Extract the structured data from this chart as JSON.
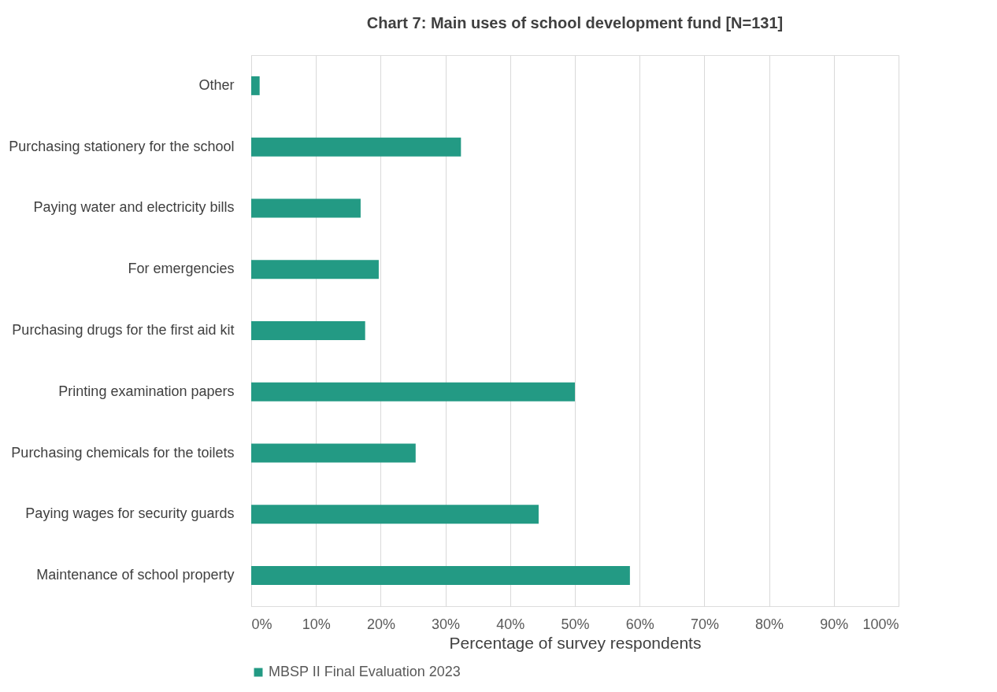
{
  "chart_data": {
    "type": "bar",
    "orientation": "horizontal",
    "title": "Chart 7: Main uses of school development fund [N=131]",
    "categories": [
      "Other",
      "Purchasing stationery for the school",
      "Paying water and electricity bills",
      "For emergencies",
      "Purchasing drugs for the first aid kit",
      "Printing examination papers",
      "Purchasing chemicals for the toilets",
      "Paying wages for security guards",
      "Maintenance of school property"
    ],
    "series": [
      {
        "name": "MBSP II Final Evaluation 2023",
        "color": "#239a84",
        "values": [
          1.3,
          32.4,
          16.9,
          19.7,
          17.6,
          50.0,
          25.4,
          44.4,
          58.5
        ]
      }
    ],
    "xlabel": "Percentage of survey respondents",
    "xlim": [
      0,
      100
    ],
    "xticks": [
      {
        "value": 0,
        "label": "0%"
      },
      {
        "value": 10,
        "label": "10%"
      },
      {
        "value": 20,
        "label": "20%"
      },
      {
        "value": 30,
        "label": "30%"
      },
      {
        "value": 40,
        "label": "40%"
      },
      {
        "value": 50,
        "label": "50%"
      },
      {
        "value": 60,
        "label": "60%"
      },
      {
        "value": 70,
        "label": "70%"
      },
      {
        "value": 80,
        "label": "80%"
      },
      {
        "value": 90,
        "label": "90%"
      },
      {
        "value": 100,
        "label": "100%"
      }
    ],
    "grid": "x",
    "legend": "bottom"
  }
}
